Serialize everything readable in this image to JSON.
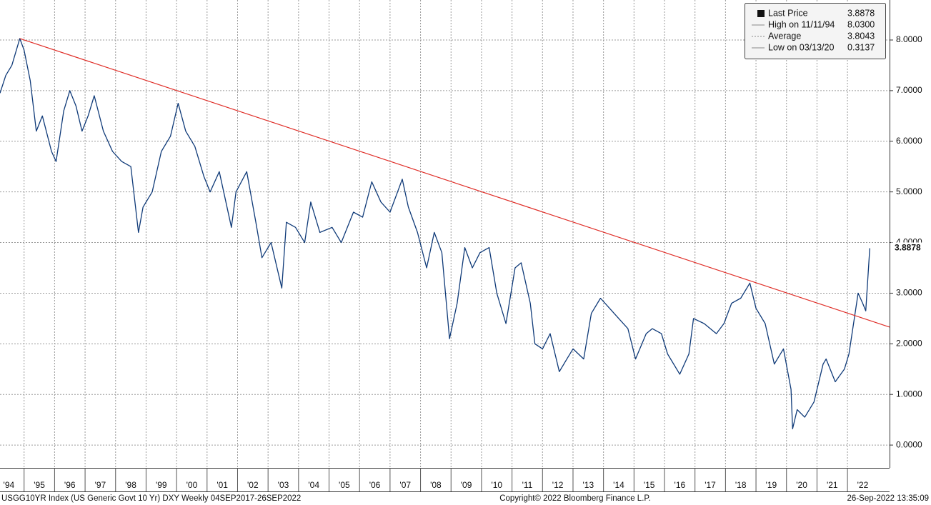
{
  "chart_data": {
    "type": "line",
    "series": [
      {
        "name": "USGG10YR Index",
        "color": "#0f3a78",
        "x": [
          1994.21,
          1994.4,
          1994.6,
          1994.86,
          1995.0,
          1995.2,
          1995.4,
          1995.6,
          1995.9,
          1996.05,
          1996.3,
          1996.5,
          1996.7,
          1996.9,
          1997.1,
          1997.3,
          1997.6,
          1997.9,
          1998.2,
          1998.5,
          1998.75,
          1998.9,
          1999.2,
          1999.5,
          1999.8,
          2000.05,
          2000.3,
          2000.6,
          2000.9,
          2001.1,
          2001.4,
          2001.8,
          2001.95,
          2002.3,
          2002.6,
          2002.8,
          2003.1,
          2003.45,
          2003.6,
          2003.9,
          2004.2,
          2004.4,
          2004.7,
          2005.1,
          2005.4,
          2005.8,
          2006.1,
          2006.4,
          2006.7,
          2007.0,
          2007.4,
          2007.6,
          2007.9,
          2008.2,
          2008.45,
          2008.7,
          2008.95,
          2009.2,
          2009.45,
          2009.7,
          2009.95,
          2010.25,
          2010.5,
          2010.8,
          2011.1,
          2011.3,
          2011.6,
          2011.75,
          2012.0,
          2012.25,
          2012.55,
          2012.8,
          2013.0,
          2013.35,
          2013.6,
          2013.9,
          2014.2,
          2014.5,
          2014.8,
          2015.05,
          2015.4,
          2015.6,
          2015.9,
          2016.1,
          2016.5,
          2016.8,
          2016.95,
          2017.3,
          2017.7,
          2017.95,
          2018.2,
          2018.5,
          2018.8,
          2019.0,
          2019.3,
          2019.6,
          2019.9,
          2020.15,
          2020.2,
          2020.35,
          2020.6,
          2020.9,
          2021.2,
          2021.3,
          2021.6,
          2021.9,
          2022.05,
          2022.2,
          2022.35,
          2022.5,
          2022.6,
          2022.73
        ],
        "values": [
          6.95,
          7.3,
          7.5,
          8.03,
          7.8,
          7.2,
          6.2,
          6.5,
          5.8,
          5.6,
          6.6,
          7.0,
          6.7,
          6.2,
          6.5,
          6.9,
          6.2,
          5.8,
          5.6,
          5.5,
          4.2,
          4.7,
          5.0,
          5.8,
          6.1,
          6.75,
          6.2,
          5.9,
          5.3,
          5.0,
          5.4,
          4.3,
          5.0,
          5.4,
          4.4,
          3.7,
          4.0,
          3.1,
          4.4,
          4.3,
          4.0,
          4.8,
          4.2,
          4.3,
          4.0,
          4.6,
          4.5,
          5.2,
          4.8,
          4.6,
          5.25,
          4.7,
          4.2,
          3.5,
          4.2,
          3.8,
          2.1,
          2.8,
          3.9,
          3.5,
          3.8,
          3.9,
          3.0,
          2.4,
          3.5,
          3.6,
          2.8,
          2.0,
          1.9,
          2.2,
          1.45,
          1.7,
          1.9,
          1.7,
          2.6,
          2.9,
          2.7,
          2.5,
          2.3,
          1.7,
          2.2,
          2.3,
          2.2,
          1.8,
          1.4,
          1.8,
          2.5,
          2.4,
          2.2,
          2.4,
          2.8,
          2.9,
          3.2,
          2.7,
          2.4,
          1.6,
          1.9,
          1.1,
          0.32,
          0.7,
          0.55,
          0.85,
          1.6,
          1.7,
          1.25,
          1.5,
          1.8,
          2.4,
          3.0,
          2.8,
          2.65,
          3.8878
        ]
      }
    ],
    "trendline": {
      "color": "#e0302a",
      "x": [
        1994.86,
        2023.38
      ],
      "values": [
        8.03,
        2.33
      ]
    },
    "xlim": [
      1994.21,
      2023.38
    ],
    "xticks": [
      {
        "value": 1994,
        "label": "'94"
      },
      {
        "value": 1995,
        "label": "'95"
      },
      {
        "value": 1996,
        "label": "'96"
      },
      {
        "value": 1997,
        "label": "'97"
      },
      {
        "value": 1998,
        "label": "'98"
      },
      {
        "value": 1999,
        "label": "'99"
      },
      {
        "value": 2000,
        "label": "'00"
      },
      {
        "value": 2001,
        "label": "'01"
      },
      {
        "value": 2002,
        "label": "'02"
      },
      {
        "value": 2003,
        "label": "'03"
      },
      {
        "value": 2004,
        "label": "'04"
      },
      {
        "value": 2005,
        "label": "'05"
      },
      {
        "value": 2006,
        "label": "'06"
      },
      {
        "value": 2007,
        "label": "'07"
      },
      {
        "value": 2008,
        "label": "'08"
      },
      {
        "value": 2009,
        "label": "'09"
      },
      {
        "value": 2010,
        "label": "'10"
      },
      {
        "value": 2011,
        "label": "'11"
      },
      {
        "value": 2012,
        "label": "'12"
      },
      {
        "value": 2013,
        "label": "'13"
      },
      {
        "value": 2014,
        "label": "'14"
      },
      {
        "value": 2015,
        "label": "'15"
      },
      {
        "value": 2016,
        "label": "'16"
      },
      {
        "value": 2017,
        "label": "'17"
      },
      {
        "value": 2018,
        "label": "'18"
      },
      {
        "value": 2019,
        "label": "'19"
      },
      {
        "value": 2020,
        "label": "'20"
      },
      {
        "value": 2021,
        "label": "'21"
      },
      {
        "value": 2022,
        "label": "'22"
      }
    ],
    "ylim": [
      -0.45,
      8.79
    ],
    "yticks": [
      {
        "value": 0,
        "label": "0.0000"
      },
      {
        "value": 1,
        "label": "1.0000"
      },
      {
        "value": 2,
        "label": "2.0000"
      },
      {
        "value": 3,
        "label": "3.0000"
      },
      {
        "value": 4,
        "label": "4.0000"
      },
      {
        "value": 5,
        "label": "5.0000"
      },
      {
        "value": 6,
        "label": "6.0000"
      },
      {
        "value": 7,
        "label": "7.0000"
      },
      {
        "value": 8,
        "label": "8.0000"
      }
    ],
    "grid": true,
    "last_value": {
      "value": 3.8878,
      "label": "3.8878"
    },
    "legend": [
      {
        "label": "Last Price",
        "value": "3.8878"
      },
      {
        "label": "High on 11/11/94",
        "value": "8.0300"
      },
      {
        "label": "Average",
        "value": "3.8043"
      },
      {
        "label": "Low on 03/13/20",
        "value": "0.3137"
      }
    ],
    "footer": {
      "left": "USGG10YR Index (US Generic Govt 10 Yr) DXY  Weekly 04SEP2017-26SEP2022",
      "center": "Copyright© 2022 Bloomberg Finance L.P.",
      "right": "26-Sep-2022 13:35:09"
    }
  }
}
